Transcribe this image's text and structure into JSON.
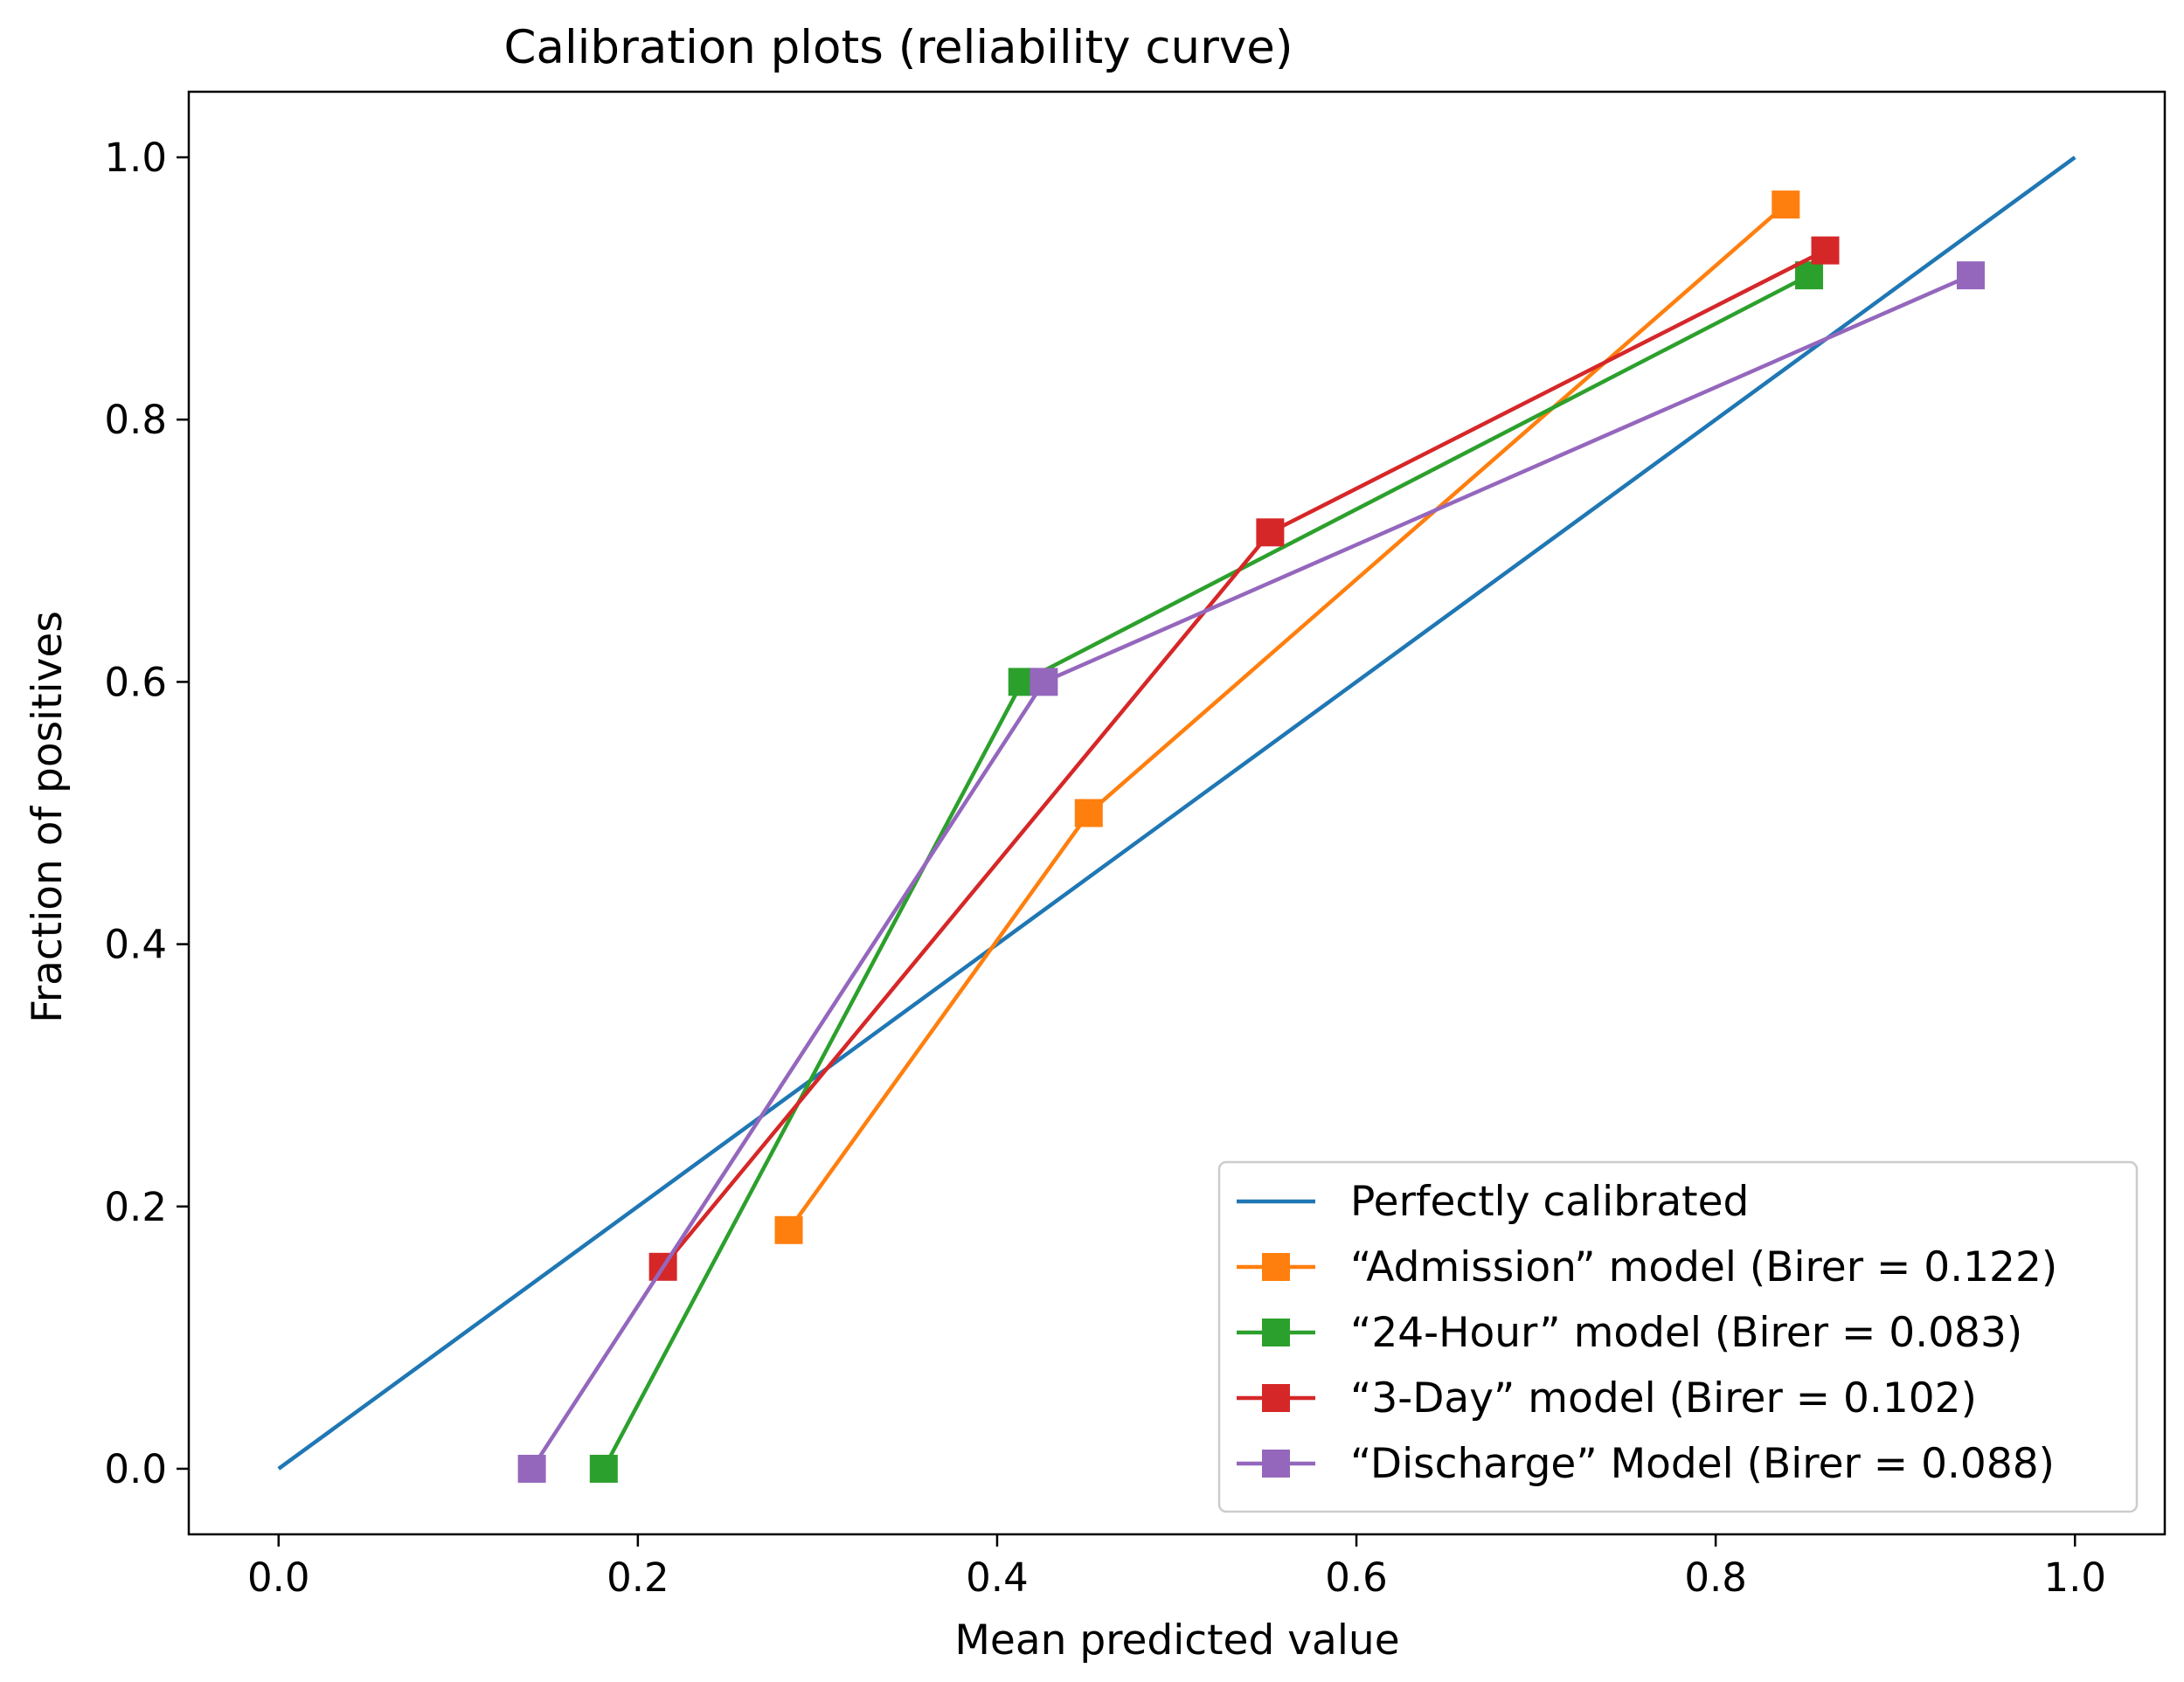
{
  "chart_data": {
    "type": "line",
    "title": "Calibration plots (reliability curve)",
    "xlabel": "Mean predicted value",
    "ylabel": "Fraction of positives",
    "xlim": [
      -0.05,
      1.05
    ],
    "ylim": [
      -0.05,
      1.05
    ],
    "xticks": [
      0.0,
      0.2,
      0.4,
      0.6,
      0.8,
      1.0
    ],
    "yticks": [
      0.0,
      0.2,
      0.4,
      0.6,
      0.8,
      1.0
    ],
    "xtick_labels": [
      "0.0",
      "0.2",
      "0.4",
      "0.6",
      "0.8",
      "1.0"
    ],
    "ytick_labels": [
      "0.0",
      "0.2",
      "0.4",
      "0.6",
      "0.8",
      "1.0"
    ],
    "grid": false,
    "legend_position": "lower right",
    "series": [
      {
        "name": "Perfectly calibrated",
        "color": "#1f77b4",
        "marker": "none",
        "x": [
          0.0,
          1.0
        ],
        "y": [
          0.0,
          1.0
        ]
      },
      {
        "name": "“Admission” model (Birer = 0.122)",
        "color": "#ff7f0e",
        "marker": "square",
        "x": [
          0.284,
          0.451,
          0.839
        ],
        "y": [
          0.182,
          0.5,
          0.964
        ]
      },
      {
        "name": "“24-Hour” model (Birer = 0.083)",
        "color": "#2ca02c",
        "marker": "square",
        "x": [
          0.181,
          0.414,
          0.852
        ],
        "y": [
          0.0,
          0.6,
          0.91
        ]
      },
      {
        "name": "“3-Day” model (Birer = 0.102)",
        "color": "#d62728",
        "marker": "square",
        "x": [
          0.214,
          0.552,
          0.861
        ],
        "y": [
          0.154,
          0.714,
          0.929
        ]
      },
      {
        "name": "“Discharge” Model (Birer = 0.088)",
        "color": "#9467bd",
        "marker": "square",
        "x": [
          0.141,
          0.426,
          0.942
        ],
        "y": [
          0.0,
          0.6,
          0.91
        ]
      }
    ]
  }
}
